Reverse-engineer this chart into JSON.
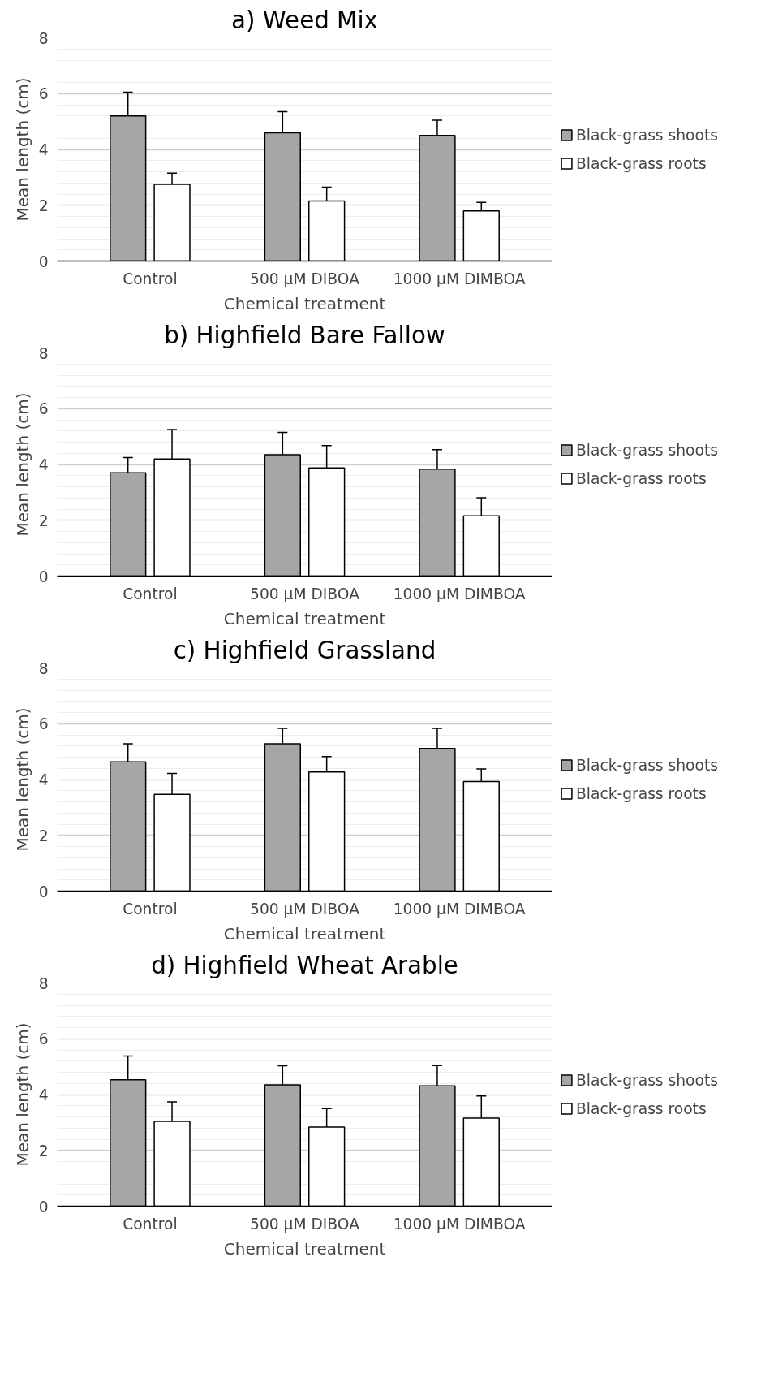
{
  "chart_data": [
    {
      "type": "bar",
      "title": "a) Weed Mix",
      "xlabel": "Chemical treatment",
      "ylabel": "Mean length (cm)",
      "categories": [
        "Control",
        "500 µM DIBOA",
        "1000 µM DIMBOA"
      ],
      "ylim": [
        0,
        8
      ],
      "yticks": [
        0,
        2,
        4,
        6,
        8
      ],
      "grid": "y",
      "legend": "right",
      "series": [
        {
          "name": "Black-grass shoots",
          "color": "#a6a6a6",
          "values": [
            5.2,
            4.6,
            4.5
          ],
          "errors": [
            0.85,
            0.75,
            0.55
          ]
        },
        {
          "name": "Black-grass roots",
          "color": "#ffffff",
          "values": [
            2.75,
            2.15,
            1.8
          ],
          "errors": [
            0.4,
            0.5,
            0.3
          ]
        }
      ]
    },
    {
      "type": "bar",
      "title": "b) Highfield Bare Fallow",
      "xlabel": "Chemical treatment",
      "ylabel": "Mean length (cm)",
      "categories": [
        "Control",
        "500 µM DIBOA",
        "1000 µM DIMBOA"
      ],
      "ylim": [
        0,
        8
      ],
      "yticks": [
        0,
        2,
        4,
        6,
        8
      ],
      "grid": "y",
      "legend": "right",
      "series": [
        {
          "name": "Black-grass shoots",
          "color": "#a6a6a6",
          "values": [
            3.7,
            4.35,
            3.83
          ],
          "errors": [
            0.55,
            0.8,
            0.7
          ]
        },
        {
          "name": "Black-grass roots",
          "color": "#ffffff",
          "values": [
            4.2,
            3.88,
            2.16
          ],
          "errors": [
            1.05,
            0.8,
            0.65
          ]
        }
      ]
    },
    {
      "type": "bar",
      "title": "c) Highfield Grassland",
      "xlabel": "Chemical treatment",
      "ylabel": "Mean length (cm)",
      "categories": [
        "Control",
        "500 µM DIBOA",
        "1000 µM DIMBOA"
      ],
      "ylim": [
        0,
        8
      ],
      "yticks": [
        0,
        2,
        4,
        6,
        8
      ],
      "grid": "y",
      "legend": "right",
      "series": [
        {
          "name": "Black-grass shoots",
          "color": "#a6a6a6",
          "values": [
            4.63,
            5.28,
            5.11
          ],
          "errors": [
            0.65,
            0.55,
            0.72
          ]
        },
        {
          "name": "Black-grass roots",
          "color": "#ffffff",
          "values": [
            3.47,
            4.27,
            3.93
          ],
          "errors": [
            0.75,
            0.55,
            0.45
          ]
        }
      ]
    },
    {
      "type": "bar",
      "title": "d) Highfield Wheat Arable",
      "xlabel": "Chemical treatment",
      "ylabel": "Mean length (cm)",
      "categories": [
        "Control",
        "500 µM DIBOA",
        "1000 µM DIMBOA"
      ],
      "ylim": [
        0,
        8
      ],
      "yticks": [
        0,
        2,
        4,
        6,
        8
      ],
      "grid": "y",
      "legend": "right",
      "series": [
        {
          "name": "Black-grass shoots",
          "color": "#a6a6a6",
          "values": [
            4.53,
            4.35,
            4.31
          ],
          "errors": [
            0.85,
            0.68,
            0.73
          ]
        },
        {
          "name": "Black-grass roots",
          "color": "#ffffff",
          "values": [
            3.04,
            2.84,
            3.16
          ],
          "errors": [
            0.7,
            0.66,
            0.79
          ]
        }
      ]
    }
  ]
}
